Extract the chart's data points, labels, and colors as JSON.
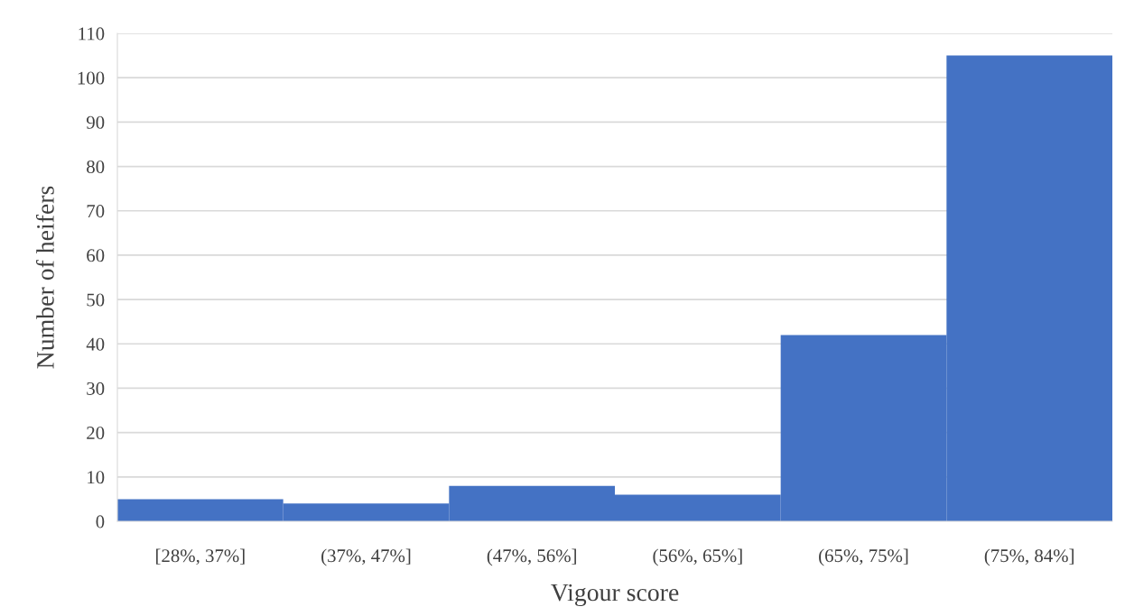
{
  "chart_data": {
    "type": "bar",
    "xlabel": "Vigour score",
    "ylabel": "Number of heifers",
    "categories": [
      "[28%, 37%]",
      "(37%, 47%]",
      "(47%, 56%]",
      "(56%, 65%]",
      "(65%, 75%]",
      "(75%, 84%]"
    ],
    "values": [
      5,
      4,
      8,
      6,
      42,
      105
    ],
    "color": "#4472c4",
    "ylim": [
      0,
      110
    ],
    "yticks": [
      0,
      10,
      20,
      30,
      40,
      50,
      60,
      70,
      80,
      90,
      100,
      110
    ],
    "grid": "y",
    "legend": false
  }
}
